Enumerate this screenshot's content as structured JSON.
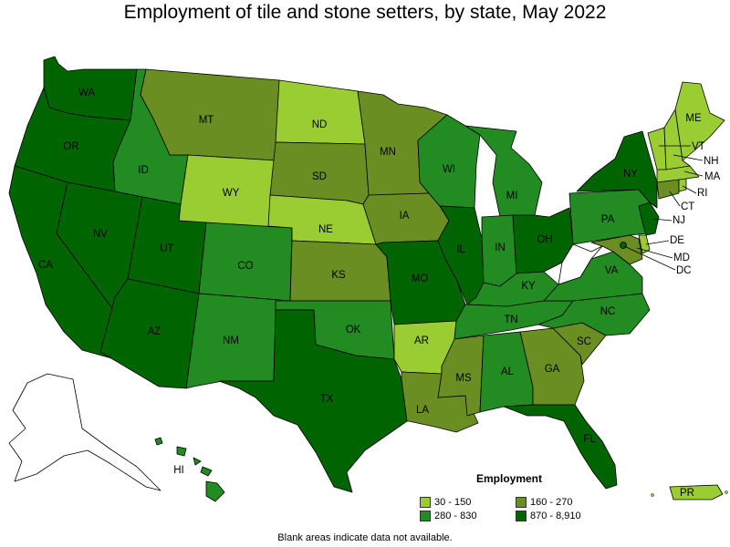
{
  "title": "Employment of tile and stone setters, by state, May 2022",
  "footnote": "Blank areas indicate data not available.",
  "colors": {
    "c1": "#9acd32",
    "c2": "#6b8e23",
    "c3": "#228b22",
    "c4": "#006400"
  },
  "legend": {
    "title": "Employment",
    "items": [
      {
        "range": "30 - 150",
        "class": "c1"
      },
      {
        "range": "160 - 270",
        "class": "c2"
      },
      {
        "range": "280 - 830",
        "class": "c3"
      },
      {
        "range": "870 - 8,910",
        "class": "c4"
      }
    ]
  },
  "states": {
    "WA": {
      "label": "WA",
      "class": "c4"
    },
    "OR": {
      "label": "OR",
      "class": "c4"
    },
    "CA": {
      "label": "CA",
      "class": "c4"
    },
    "NV": {
      "label": "NV",
      "class": "c4"
    },
    "ID": {
      "label": "ID",
      "class": "c3"
    },
    "MT": {
      "label": "MT",
      "class": "c2"
    },
    "WY": {
      "label": "WY",
      "class": "c1"
    },
    "UT": {
      "label": "UT",
      "class": "c4"
    },
    "AZ": {
      "label": "AZ",
      "class": "c4"
    },
    "CO": {
      "label": "CO",
      "class": "c3"
    },
    "NM": {
      "label": "NM",
      "class": "c3"
    },
    "ND": {
      "label": "ND",
      "class": "c1"
    },
    "SD": {
      "label": "SD",
      "class": "c2"
    },
    "NE": {
      "label": "NE",
      "class": "c1"
    },
    "KS": {
      "label": "KS",
      "class": "c2"
    },
    "OK": {
      "label": "OK",
      "class": "c3"
    },
    "TX": {
      "label": "TX",
      "class": "c4"
    },
    "MN": {
      "label": "MN",
      "class": "c2"
    },
    "IA": {
      "label": "IA",
      "class": "c2"
    },
    "MO": {
      "label": "MO",
      "class": "c4"
    },
    "AR": {
      "label": "AR",
      "class": "c1"
    },
    "LA": {
      "label": "LA",
      "class": "c2"
    },
    "WI": {
      "label": "WI",
      "class": "c3"
    },
    "IL": {
      "label": "IL",
      "class": "c4"
    },
    "MI": {
      "label": "MI",
      "class": "c3"
    },
    "IN": {
      "label": "IN",
      "class": "c3"
    },
    "OH": {
      "label": "OH",
      "class": "c4"
    },
    "KY": {
      "label": "KY",
      "class": "c3"
    },
    "TN": {
      "label": "TN",
      "class": "c3"
    },
    "MS": {
      "label": "MS",
      "class": "c2"
    },
    "AL": {
      "label": "AL",
      "class": "c3"
    },
    "GA": {
      "label": "GA",
      "class": "c2"
    },
    "FL": {
      "label": "FL",
      "class": "c4"
    },
    "SC": {
      "label": "SC",
      "class": "c2"
    },
    "NC": {
      "label": "NC",
      "class": "c3"
    },
    "VA": {
      "label": "VA",
      "class": "c3"
    },
    "WV": {
      "label": "",
      "class": "none"
    },
    "PA": {
      "label": "PA",
      "class": "c3"
    },
    "NY": {
      "label": "NY",
      "class": "c4"
    },
    "NJ": {
      "label": "NJ",
      "class": "c4"
    },
    "DE": {
      "label": "DE",
      "class": "c1"
    },
    "MD": {
      "label": "MD",
      "class": "c2"
    },
    "DC": {
      "label": "DC",
      "class": "c4"
    },
    "CT": {
      "label": "CT",
      "class": "c2"
    },
    "RI": {
      "label": "RI",
      "class": "c1"
    },
    "MA": {
      "label": "MA",
      "class": "c1"
    },
    "VT": {
      "label": "VT",
      "class": "c1"
    },
    "NH": {
      "label": "NH",
      "class": "c1"
    },
    "ME": {
      "label": "ME",
      "class": "c1"
    },
    "AK": {
      "label": "",
      "class": "none"
    },
    "HI": {
      "label": "HI",
      "class": "c3"
    },
    "PR": {
      "label": "PR",
      "class": "c1"
    }
  }
}
